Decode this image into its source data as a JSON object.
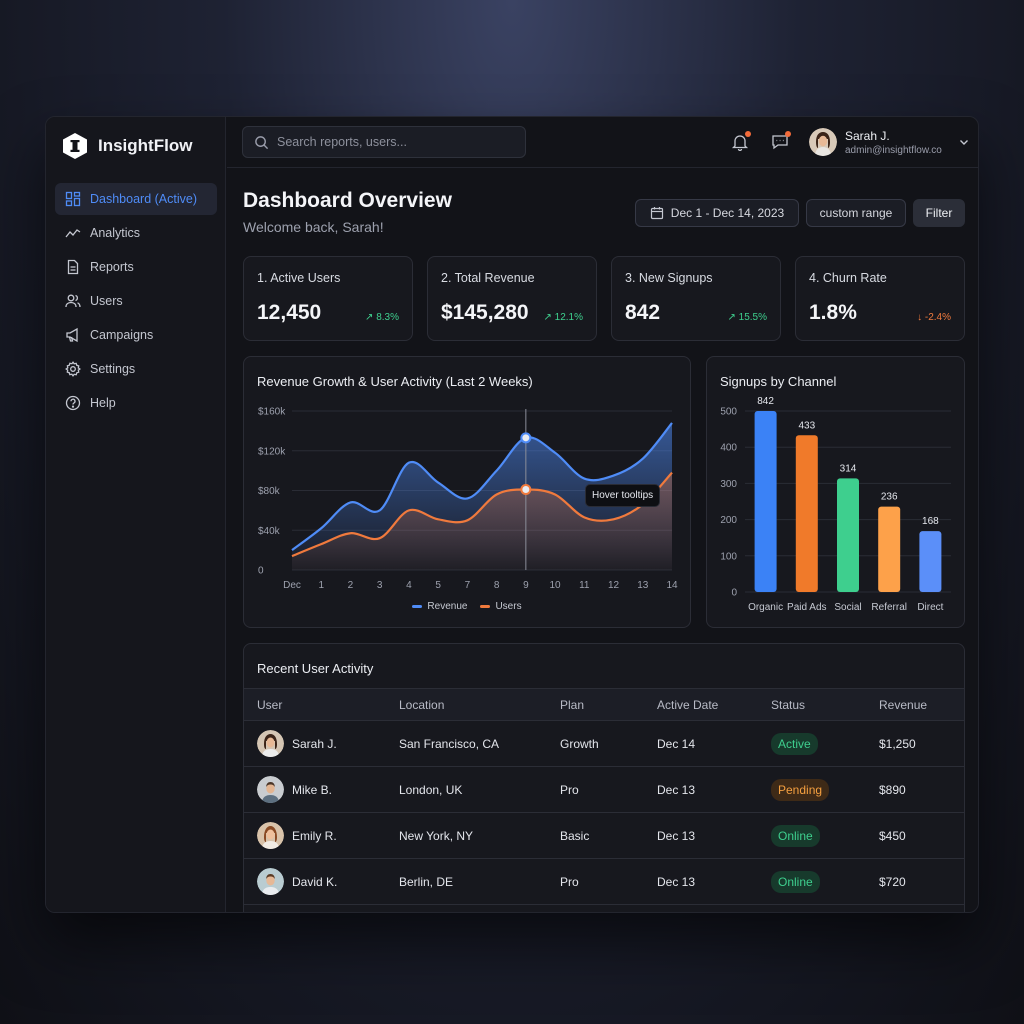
{
  "app": {
    "name": "InsightFlow"
  },
  "sidebar": {
    "items": [
      {
        "label": "Dashboard (Active)",
        "icon": "dashboard-icon"
      },
      {
        "label": "Analytics",
        "icon": "analytics-icon"
      },
      {
        "label": "Reports",
        "icon": "reports-icon"
      },
      {
        "label": "Users",
        "icon": "users-icon"
      },
      {
        "label": "Campaigns",
        "icon": "megaphone-icon"
      },
      {
        "label": "Settings",
        "icon": "gear-icon"
      },
      {
        "label": "Help",
        "icon": "help-icon"
      }
    ]
  },
  "topbar": {
    "search_placeholder": "Search reports, users...",
    "user": {
      "name": "Sarah J.",
      "email": "admin@insightflow.co"
    }
  },
  "header": {
    "title": "Dashboard Overview",
    "subtitle": "Welcome back, Sarah!",
    "date_range": "Dec 1 - Dec 14, 2023",
    "custom_range_label": "custom range",
    "filter_label": "Filter"
  },
  "kpis": [
    {
      "label": "1. Active Users",
      "value": "12,450",
      "delta": "↗ 8.3%",
      "trend": "up"
    },
    {
      "label": "2. Total Revenue",
      "value": "$145,280",
      "delta": "↗ 12.1%",
      "trend": "up"
    },
    {
      "label": "3. New Signups",
      "value": "842",
      "delta": "↗ 15.5%",
      "trend": "up"
    },
    {
      "label": "4. Churn Rate",
      "value": "1.8%",
      "delta": "↓ -2.4%",
      "trend": "down"
    }
  ],
  "revenue_chart": {
    "title": "Revenue Growth & User Activity (Last 2 Weeks)",
    "tooltip": "Hover tooltips"
  },
  "channel_chart": {
    "title": "Signups by Channel"
  },
  "activity": {
    "title": "Recent User Activity",
    "columns": [
      "User",
      "Location",
      "Plan",
      "Active Date",
      "Status",
      "Revenue"
    ],
    "rows": [
      {
        "user": "Sarah J.",
        "location": "San Francisco, CA",
        "plan": "Growth",
        "date": "Dec 14",
        "status": "Active",
        "status_color": "green",
        "revenue": "$1,250"
      },
      {
        "user": "Mike B.",
        "location": "London, UK",
        "plan": "Pro",
        "date": "Dec 13",
        "status": "Pending",
        "status_color": "orange",
        "revenue": "$890"
      },
      {
        "user": "Emily R.",
        "location": "New York, NY",
        "plan": "Basic",
        "date": "Dec 13",
        "status": "Online",
        "status_color": "green",
        "revenue": "$450"
      },
      {
        "user": "David K.",
        "location": "Berlin, DE",
        "plan": "Pro",
        "date": "Dec 13",
        "status": "Online",
        "status_color": "green",
        "revenue": "$720"
      }
    ]
  },
  "colors": {
    "accent": "#4f8cf7",
    "revenue": "#4f8cf7",
    "users": "#f07a3d",
    "success": "#3ecf8e",
    "warning": "#f5a040"
  },
  "chart_data": [
    {
      "type": "area",
      "title": "Revenue Growth & User Activity (Last 2 Weeks)",
      "x": [
        "Dec",
        "1",
        "2",
        "3",
        "4",
        "5",
        "7",
        "8",
        "9",
        "10",
        "11",
        "12",
        "13",
        "14"
      ],
      "yticks": [
        "$160k",
        "$120k",
        "$80k",
        "$40k",
        "0"
      ],
      "ylim": [
        0,
        160000
      ],
      "grid": true,
      "legend_position": "bottom",
      "series": [
        {
          "name": "Revenue",
          "color": "#4f8cf7",
          "values": [
            20000,
            42000,
            68000,
            60000,
            108000,
            88000,
            72000,
            100000,
            133000,
            118000,
            92000,
            95000,
            112000,
            148000
          ]
        },
        {
          "name": "Users",
          "color": "#f07a3d",
          "values": [
            14000,
            26000,
            37000,
            32000,
            60000,
            51000,
            50000,
            76000,
            81000,
            76000,
            53000,
            51000,
            66000,
            98000
          ]
        }
      ],
      "highlight_index": 8
    },
    {
      "type": "bar",
      "title": "Signups by Channel",
      "categories": [
        "Organic",
        "Paid Ads",
        "Social",
        "Referral",
        "Direct"
      ],
      "values": [
        842,
        433,
        314,
        236,
        168
      ],
      "data_labels": [
        "842",
        "433",
        "314",
        "236",
        "168"
      ],
      "colors": [
        "#3b82f6",
        "#f07a2a",
        "#3ecf8e",
        "#fda14a",
        "#5b8ff9"
      ],
      "yticks": [
        "500",
        "400",
        "300",
        "200",
        "100",
        "0"
      ],
      "ylim": [
        0,
        500
      ],
      "grid": true
    }
  ]
}
